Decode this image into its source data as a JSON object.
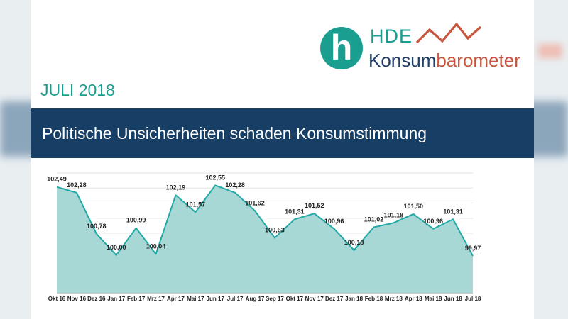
{
  "logo": {
    "text_top": "HDE",
    "text_name_part1": "Konsum",
    "text_name_part2": "barometer",
    "brand_teal": "#1a9e8f",
    "brand_navy": "#1f3f6b",
    "brand_red": "#c8553d"
  },
  "date_label": "JULI 2018",
  "title": "Politische Unsicherheiten schaden Konsumstimmung",
  "chart_data": {
    "type": "area",
    "categories": [
      "Okt 16",
      "Nov 16",
      "Dez 16",
      "Jan 17",
      "Feb 17",
      "Mrz 17",
      "Apr 17",
      "Mai 17",
      "Jun 17",
      "Jul 17",
      "Aug 17",
      "Sep 17",
      "Okt 17",
      "Nov 17",
      "Dez 17",
      "Jan 18",
      "Feb 18",
      "Mrz 18",
      "Apr 18",
      "Mai 18",
      "Jun 18",
      "Jul 18"
    ],
    "values": [
      102.49,
      102.28,
      100.78,
      100.0,
      100.99,
      100.04,
      102.19,
      101.57,
      102.55,
      102.28,
      101.62,
      100.63,
      101.31,
      101.52,
      100.96,
      100.18,
      101.02,
      101.18,
      101.5,
      100.96,
      101.31,
      99.97
    ],
    "labels": [
      "102,49",
      "102,28",
      "100,78",
      "100,00",
      "100,99",
      "100,04",
      "102,19",
      "101,57",
      "102,55",
      "102,28",
      "101,62",
      "100,63",
      "101,31",
      "101,52",
      "100,96",
      "100,18",
      "101,02",
      "101,18",
      "101,50",
      "100,96",
      "101,31",
      "99,97"
    ],
    "ylim": [
      98.6,
      103.0
    ],
    "grid": true,
    "line_color": "#22a9a6",
    "fill_color": "#a8d8d6"
  }
}
